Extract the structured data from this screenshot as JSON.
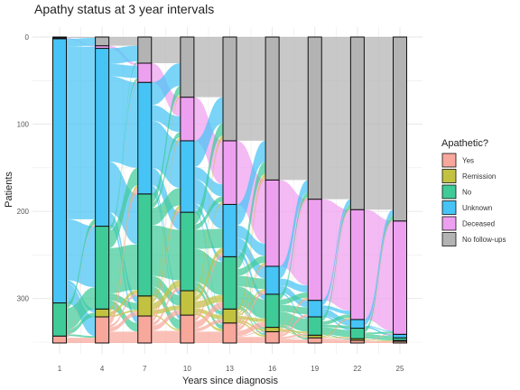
{
  "chart_data": {
    "type": "alluvial",
    "title": "Apathy status at 3 year intervals",
    "xlabel": "Years since diagnosis",
    "ylabel": "Patients",
    "x": [
      1,
      4,
      7,
      10,
      13,
      16,
      19,
      22,
      25
    ],
    "ylim": [
      0,
      350
    ],
    "yticks": [
      0,
      100,
      200,
      300
    ],
    "y_reversed": true,
    "grid": true,
    "legend": {
      "title": "Apathetic?",
      "position": "right",
      "entries": [
        "Yes",
        "Remission",
        "No",
        "Unknown",
        "Deceased",
        "No follow-ups"
      ]
    },
    "categories_stack_order_top_to_bottom": [
      "No follow-ups",
      "Deceased",
      "Unknown",
      "No",
      "Remission",
      "Yes"
    ],
    "colors": {
      "Yes": "#f8a79b",
      "Remission": "#c2c240",
      "No": "#3fcb97",
      "Unknown": "#45c4f5",
      "Deceased": "#eea0f0",
      "No follow-ups": "#b3b3b3"
    },
    "stacks": [
      {
        "x": 1,
        "values": {
          "No follow-ups": 1,
          "Deceased": 1,
          "Unknown": 303,
          "No": 38,
          "Remission": 0,
          "Yes": 8
        }
      },
      {
        "x": 4,
        "values": {
          "No follow-ups": 10,
          "Deceased": 3,
          "Unknown": 204,
          "No": 95,
          "Remission": 9,
          "Yes": 30
        }
      },
      {
        "x": 7,
        "values": {
          "No follow-ups": 30,
          "Deceased": 22,
          "Unknown": 128,
          "No": 117,
          "Remission": 23,
          "Yes": 31
        }
      },
      {
        "x": 10,
        "values": {
          "No follow-ups": 69,
          "Deceased": 50,
          "Unknown": 82,
          "No": 90,
          "Remission": 28,
          "Yes": 32
        }
      },
      {
        "x": 13,
        "values": {
          "No follow-ups": 119,
          "Deceased": 73,
          "Unknown": 60,
          "No": 60,
          "Remission": 16,
          "Yes": 23
        }
      },
      {
        "x": 16,
        "values": {
          "No follow-ups": 164,
          "Deceased": 99,
          "Unknown": 32,
          "No": 38,
          "Remission": 5,
          "Yes": 13
        }
      },
      {
        "x": 19,
        "values": {
          "No follow-ups": 186,
          "Deceased": 116,
          "Unknown": 19,
          "No": 21,
          "Remission": 3,
          "Yes": 6
        }
      },
      {
        "x": 22,
        "values": {
          "No follow-ups": 198,
          "Deceased": 126,
          "Unknown": 10,
          "No": 12,
          "Remission": 2,
          "Yes": 3
        }
      },
      {
        "x": 25,
        "values": {
          "No follow-ups": 211,
          "Deceased": 130,
          "Unknown": 4,
          "No": 3,
          "Remission": 1,
          "Yes": 2
        }
      }
    ],
    "flows": [
      {
        "from_x": 1,
        "to_x": 4,
        "values": [
          [
            "No follow-ups",
            "No follow-ups",
            1
          ],
          [
            "Deceased",
            "Deceased",
            1
          ],
          [
            "Unknown",
            "No follow-ups",
            9
          ],
          [
            "Unknown",
            "Deceased",
            2
          ],
          [
            "Unknown",
            "Unknown",
            196
          ],
          [
            "Unknown",
            "No",
            70
          ],
          [
            "Unknown",
            "Remission",
            4
          ],
          [
            "Unknown",
            "Yes",
            22
          ],
          [
            "No",
            "Unknown",
            6
          ],
          [
            "No",
            "No",
            25
          ],
          [
            "No",
            "Remission",
            5
          ],
          [
            "No",
            "Yes",
            2
          ],
          [
            "Yes",
            "Unknown",
            2
          ],
          [
            "Yes",
            "Yes",
            6
          ]
        ]
      },
      {
        "from_x": 4,
        "to_x": 7,
        "values": [
          [
            "No follow-ups",
            "No follow-ups",
            10
          ],
          [
            "Deceased",
            "Deceased",
            3
          ],
          [
            "Unknown",
            "No follow-ups",
            18
          ],
          [
            "Unknown",
            "Deceased",
            14
          ],
          [
            "Unknown",
            "Unknown",
            98
          ],
          [
            "Unknown",
            "No",
            58
          ],
          [
            "Unknown",
            "Remission",
            8
          ],
          [
            "Unknown",
            "Yes",
            8
          ],
          [
            "No",
            "No follow-ups",
            2
          ],
          [
            "No",
            "Deceased",
            3
          ],
          [
            "No",
            "Unknown",
            20
          ],
          [
            "No",
            "No",
            52
          ],
          [
            "No",
            "Remission",
            8
          ],
          [
            "No",
            "Yes",
            10
          ],
          [
            "Remission",
            "Unknown",
            3
          ],
          [
            "Remission",
            "No",
            4
          ],
          [
            "Remission",
            "Remission",
            2
          ],
          [
            "Yes",
            "Deceased",
            2
          ],
          [
            "Yes",
            "Unknown",
            7
          ],
          [
            "Yes",
            "No",
            3
          ],
          [
            "Yes",
            "Remission",
            5
          ],
          [
            "Yes",
            "Yes",
            13
          ]
        ]
      },
      {
        "from_x": 7,
        "to_x": 10,
        "values": [
          [
            "No follow-ups",
            "No follow-ups",
            30
          ],
          [
            "Deceased",
            "Deceased",
            22
          ],
          [
            "Unknown",
            "No follow-ups",
            26
          ],
          [
            "Unknown",
            "Deceased",
            18
          ],
          [
            "Unknown",
            "Unknown",
            54
          ],
          [
            "Unknown",
            "No",
            20
          ],
          [
            "Unknown",
            "Remission",
            5
          ],
          [
            "Unknown",
            "Yes",
            5
          ],
          [
            "No",
            "No follow-ups",
            10
          ],
          [
            "No",
            "Deceased",
            6
          ],
          [
            "No",
            "Unknown",
            20
          ],
          [
            "No",
            "No",
            58
          ],
          [
            "No",
            "Remission",
            12
          ],
          [
            "No",
            "Yes",
            11
          ],
          [
            "Remission",
            "No follow-ups",
            2
          ],
          [
            "Remission",
            "Deceased",
            2
          ],
          [
            "Remission",
            "Unknown",
            4
          ],
          [
            "Remission",
            "No",
            8
          ],
          [
            "Remission",
            "Remission",
            5
          ],
          [
            "Remission",
            "Yes",
            2
          ],
          [
            "Yes",
            "No follow-ups",
            1
          ],
          [
            "Yes",
            "Deceased",
            2
          ],
          [
            "Yes",
            "Unknown",
            4
          ],
          [
            "Yes",
            "No",
            4
          ],
          [
            "Yes",
            "Remission",
            6
          ],
          [
            "Yes",
            "Yes",
            14
          ]
        ]
      },
      {
        "from_x": 10,
        "to_x": 13,
        "values": [
          [
            "No follow-ups",
            "No follow-ups",
            69
          ],
          [
            "Deceased",
            "Deceased",
            50
          ],
          [
            "Unknown",
            "No follow-ups",
            30
          ],
          [
            "Unknown",
            "Deceased",
            14
          ],
          [
            "Unknown",
            "Unknown",
            28
          ],
          [
            "Unknown",
            "No",
            6
          ],
          [
            "Unknown",
            "Remission",
            2
          ],
          [
            "Unknown",
            "Yes",
            2
          ],
          [
            "No",
            "No follow-ups",
            14
          ],
          [
            "No",
            "Deceased",
            6
          ],
          [
            "No",
            "Unknown",
            22
          ],
          [
            "No",
            "No",
            38
          ],
          [
            "No",
            "Remission",
            5
          ],
          [
            "No",
            "Yes",
            5
          ],
          [
            "Remission",
            "No follow-ups",
            4
          ],
          [
            "Remission",
            "Deceased",
            2
          ],
          [
            "Remission",
            "Unknown",
            6
          ],
          [
            "Remission",
            "No",
            8
          ],
          [
            "Remission",
            "Remission",
            5
          ],
          [
            "Remission",
            "Yes",
            3
          ],
          [
            "Yes",
            "No follow-ups",
            2
          ],
          [
            "Yes",
            "Deceased",
            1
          ],
          [
            "Yes",
            "Unknown",
            4
          ],
          [
            "Yes",
            "No",
            8
          ],
          [
            "Yes",
            "Remission",
            4
          ],
          [
            "Yes",
            "Yes",
            13
          ]
        ]
      },
      {
        "from_x": 13,
        "to_x": 16,
        "values": [
          [
            "No follow-ups",
            "No follow-ups",
            119
          ],
          [
            "Deceased",
            "Deceased",
            73
          ],
          [
            "Unknown",
            "No follow-ups",
            24
          ],
          [
            "Unknown",
            "Deceased",
            14
          ],
          [
            "Unknown",
            "Unknown",
            14
          ],
          [
            "Unknown",
            "No",
            6
          ],
          [
            "Unknown",
            "Yes",
            2
          ],
          [
            "No",
            "No follow-ups",
            14
          ],
          [
            "No",
            "Deceased",
            8
          ],
          [
            "No",
            "Unknown",
            12
          ],
          [
            "No",
            "No",
            22
          ],
          [
            "No",
            "Remission",
            2
          ],
          [
            "No",
            "Yes",
            2
          ],
          [
            "Remission",
            "No follow-ups",
            4
          ],
          [
            "Remission",
            "Deceased",
            2
          ],
          [
            "Remission",
            "Unknown",
            2
          ],
          [
            "Remission",
            "No",
            4
          ],
          [
            "Remission",
            "Remission",
            2
          ],
          [
            "Remission",
            "Yes",
            2
          ],
          [
            "Yes",
            "No follow-ups",
            3
          ],
          [
            "Yes",
            "Deceased",
            2
          ],
          [
            "Yes",
            "Unknown",
            4
          ],
          [
            "Yes",
            "No",
            6
          ],
          [
            "Yes",
            "Remission",
            1
          ],
          [
            "Yes",
            "Yes",
            7
          ]
        ]
      },
      {
        "from_x": 16,
        "to_x": 19,
        "values": [
          [
            "No follow-ups",
            "No follow-ups",
            164
          ],
          [
            "Deceased",
            "Deceased",
            99
          ],
          [
            "Unknown",
            "No follow-ups",
            14
          ],
          [
            "Unknown",
            "Deceased",
            8
          ],
          [
            "Unknown",
            "Unknown",
            8
          ],
          [
            "Unknown",
            "No",
            2
          ],
          [
            "No",
            "No follow-ups",
            6
          ],
          [
            "No",
            "Deceased",
            6
          ],
          [
            "No",
            "Unknown",
            8
          ],
          [
            "No",
            "No",
            15
          ],
          [
            "No",
            "Remission",
            1
          ],
          [
            "No",
            "Yes",
            2
          ],
          [
            "Remission",
            "No follow-ups",
            1
          ],
          [
            "Remission",
            "Deceased",
            1
          ],
          [
            "Remission",
            "No",
            2
          ],
          [
            "Remission",
            "Remission",
            1
          ],
          [
            "Yes",
            "No follow-ups",
            1
          ],
          [
            "Yes",
            "Deceased",
            2
          ],
          [
            "Yes",
            "Unknown",
            3
          ],
          [
            "Yes",
            "No",
            2
          ],
          [
            "Yes",
            "Remission",
            1
          ],
          [
            "Yes",
            "Yes",
            4
          ]
        ]
      },
      {
        "from_x": 19,
        "to_x": 22,
        "values": [
          [
            "No follow-ups",
            "No follow-ups",
            186
          ],
          [
            "Deceased",
            "Deceased",
            116
          ],
          [
            "Unknown",
            "No follow-ups",
            6
          ],
          [
            "Unknown",
            "Deceased",
            4
          ],
          [
            "Unknown",
            "Unknown",
            7
          ],
          [
            "Unknown",
            "No",
            2
          ],
          [
            "No",
            "No follow-ups",
            5
          ],
          [
            "No",
            "Deceased",
            4
          ],
          [
            "No",
            "Unknown",
            3
          ],
          [
            "No",
            "No",
            8
          ],
          [
            "No",
            "Remission",
            1
          ],
          [
            "Remission",
            "No follow-ups",
            1
          ],
          [
            "Remission",
            "Deceased",
            1
          ],
          [
            "Remission",
            "No",
            1
          ],
          [
            "Yes",
            "Deceased",
            1
          ],
          [
            "Yes",
            "No",
            1
          ],
          [
            "Yes",
            "Remission",
            1
          ],
          [
            "Yes",
            "Yes",
            3
          ]
        ]
      },
      {
        "from_x": 22,
        "to_x": 25,
        "values": [
          [
            "No follow-ups",
            "No follow-ups",
            198
          ],
          [
            "Deceased",
            "Deceased",
            126
          ],
          [
            "Unknown",
            "No follow-ups",
            7
          ],
          [
            "Unknown",
            "Deceased",
            1
          ],
          [
            "Unknown",
            "Unknown",
            2
          ],
          [
            "No",
            "No follow-ups",
            5
          ],
          [
            "No",
            "Deceased",
            2
          ],
          [
            "No",
            "Unknown",
            2
          ],
          [
            "No",
            "No",
            3
          ],
          [
            "Remission",
            "No follow-ups",
            1
          ],
          [
            "Remission",
            "Remission",
            1
          ],
          [
            "Yes",
            "Deceased",
            1
          ],
          [
            "Yes",
            "Yes",
            2
          ]
        ]
      }
    ]
  }
}
